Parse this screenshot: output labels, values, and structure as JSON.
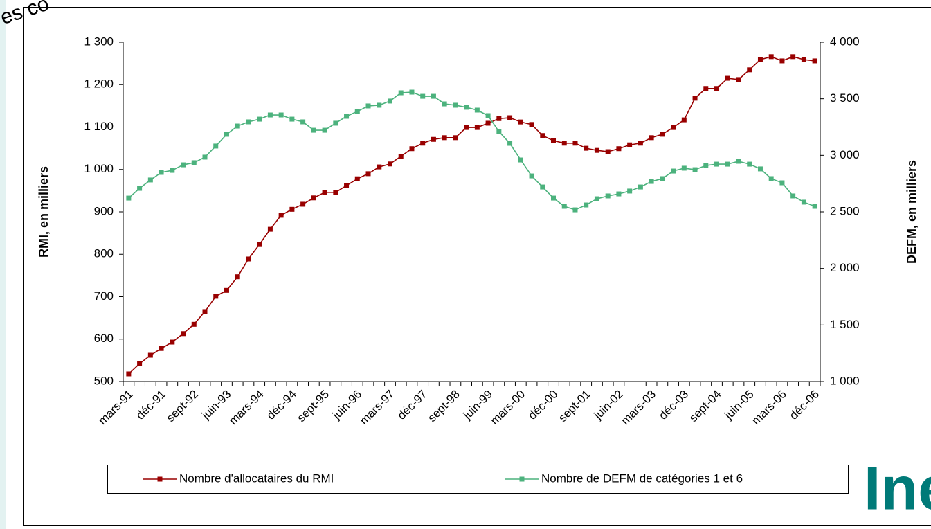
{
  "chart_data": {
    "type": "line",
    "overlay_texts": [
      "es co",
      "Ine"
    ],
    "ylabel": "RMI, en milliers",
    "y2label": "DEFM, en milliers",
    "categories": [
      "mars-91",
      null,
      null,
      "déc-91",
      null,
      null,
      "sept-92",
      null,
      null,
      "juin-93",
      null,
      null,
      "mars-94",
      null,
      null,
      "déc-94",
      null,
      null,
      "sept-95",
      null,
      null,
      "juin-96",
      null,
      null,
      "mars-97",
      null,
      null,
      "déc-97",
      null,
      null,
      "sept-98",
      null,
      null,
      "juin-99",
      null,
      null,
      "mars-00",
      null,
      null,
      "déc-00",
      null,
      null,
      "sept-01",
      null,
      null,
      "juin-02",
      null,
      null,
      "mars-03",
      null,
      null,
      "déc-03",
      null,
      null,
      "sept-04",
      null,
      null,
      "juin-05",
      null,
      null,
      "mars-06",
      null,
      null,
      "déc-06"
    ],
    "series": [
      {
        "name": "Nombre d'allocataires du RMI",
        "color": "#990000",
        "axis": "y",
        "values": [
          518,
          542,
          562,
          578,
          593,
          613,
          635,
          665,
          701,
          715,
          747,
          789,
          823,
          859,
          892,
          906,
          918,
          933,
          946,
          946,
          962,
          978,
          990,
          1006,
          1013,
          1031,
          1049,
          1062,
          1071,
          1075,
          1075,
          1099,
          1099,
          1109,
          1120,
          1122,
          1112,
          1106,
          1080,
          1068,
          1062,
          1062,
          1050,
          1045,
          1042,
          1049,
          1058,
          1062,
          1075,
          1083,
          1099,
          1117,
          1168,
          1191,
          1191,
          1215,
          1212,
          1235,
          1259,
          1266,
          1256,
          1266,
          1259,
          1256
        ]
      },
      {
        "name": "Nombre de DEFM de catégories 1 et 6",
        "color": "#4cb27d",
        "axis": "y2",
        "values": [
          2622,
          2708,
          2782,
          2849,
          2867,
          2916,
          2935,
          2984,
          3082,
          3186,
          3259,
          3296,
          3320,
          3357,
          3357,
          3320,
          3296,
          3222,
          3222,
          3284,
          3345,
          3388,
          3437,
          3443,
          3480,
          3553,
          3559,
          3522,
          3522,
          3455,
          3443,
          3425,
          3400,
          3351,
          3210,
          3106,
          2959,
          2818,
          2720,
          2622,
          2549,
          2518,
          2561,
          2616,
          2641,
          2659,
          2684,
          2720,
          2769,
          2794,
          2861,
          2886,
          2873,
          2910,
          2922,
          2922,
          2947,
          2922,
          2880,
          2794,
          2757,
          2641,
          2586,
          2549
        ]
      }
    ],
    "ylim": [
      500,
      1300
    ],
    "yticks": [
      500,
      600,
      700,
      800,
      900,
      {
        "value": 1000,
        "label": "1 000"
      },
      {
        "value": 1100,
        "label": "1 100"
      },
      {
        "value": 1200,
        "label": "1 200"
      },
      {
        "value": 1300,
        "label": "1 300"
      }
    ],
    "y2lim": [
      1000,
      4000
    ],
    "y2ticks": [
      {
        "value": 1000,
        "label": "1 000"
      },
      {
        "value": 1500,
        "label": "1 500"
      },
      {
        "value": 2000,
        "label": "2 000"
      },
      {
        "value": 2500,
        "label": "2 500"
      },
      {
        "value": 3000,
        "label": "3 000"
      },
      {
        "value": 3500,
        "label": "3 500"
      },
      {
        "value": 4000,
        "label": "4 000"
      }
    ],
    "legend": "bottom",
    "grid": false
  }
}
